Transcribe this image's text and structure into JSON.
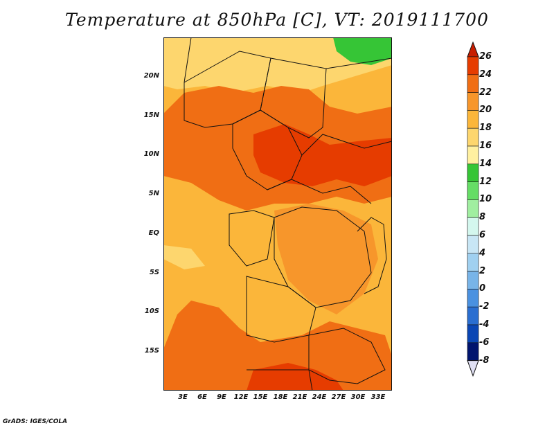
{
  "title": "Temperature at 850hPa [C], VT: 2019111700",
  "credit": "GrADS: IGES/COLA",
  "lat_labels": [
    "20N",
    "15N",
    "10N",
    "5N",
    "EQ",
    "5S",
    "10S",
    "15S"
  ],
  "lon_labels": [
    "3E",
    "6E",
    "9E",
    "12E",
    "15E",
    "18E",
    "21E",
    "24E",
    "27E",
    "30E",
    "33E"
  ],
  "colorbar": {
    "labels": [
      "26",
      "24",
      "22",
      "20",
      "18",
      "16",
      "14",
      "12",
      "10",
      "8",
      "6",
      "4",
      "2",
      "0",
      "-2",
      "-4",
      "-6",
      "-8"
    ],
    "colors": [
      "#c81e00",
      "#e63c00",
      "#f06e14",
      "#f7962b",
      "#fbb63a",
      "#fdd66e",
      "#fff0a0",
      "#36c536",
      "#66dd66",
      "#a0eea0",
      "#d4f7ee",
      "#c8e6f5",
      "#a0d0f0",
      "#78b4e8",
      "#4a91e0",
      "#2a6ed0",
      "#0a46b4",
      "#00146e",
      "#e0e0f4"
    ]
  },
  "map_colors": {
    "orange_dark": "#e63c00",
    "orange": "#f06e14",
    "orange_light": "#f7962b",
    "amber": "#fbb63a",
    "yellow": "#fdd66e",
    "green": "#36c536"
  }
}
